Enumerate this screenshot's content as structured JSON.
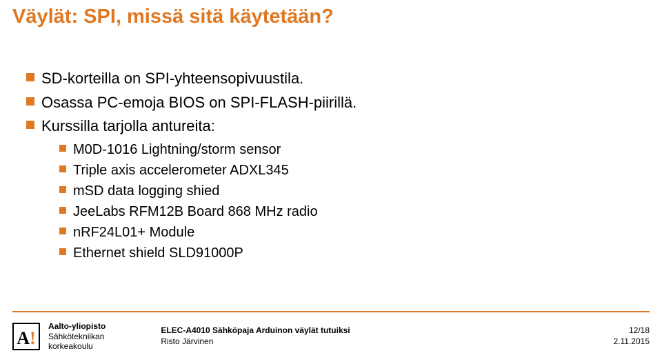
{
  "title": "Väylät: SPI, missä sitä käytetään?",
  "bullets": {
    "b1": "SD-korteilla on SPI-yhteensopivuustila.",
    "b2": "Osassa PC-emoja BIOS on SPI-FLASH-piirillä.",
    "b3": "Kurssilla tarjolla antureita:",
    "s1": "M0D-1016 Lightning/storm sensor",
    "s2": "Triple axis accelerometer ADXL345",
    "s3": "mSD data logging shied",
    "s4": "JeeLabs RFM12B Board 868 MHz radio",
    "s5": "nRF24L01+ Module",
    "s6": "Ethernet shield SLD91000P"
  },
  "footer": {
    "institution_line1": "Aalto-yliopisto",
    "institution_line2": "Sähkötekniikan",
    "institution_line3": "korkeakoulu",
    "course": "ELEC-A4010 Sähköpaja Arduinon väylät tutuiksi",
    "presenter": "Risto Järvinen",
    "page": "12/18",
    "date": "2.11.2015"
  },
  "colors": {
    "accent": "#e07822",
    "text": "#000000",
    "bg": "#ffffff"
  }
}
